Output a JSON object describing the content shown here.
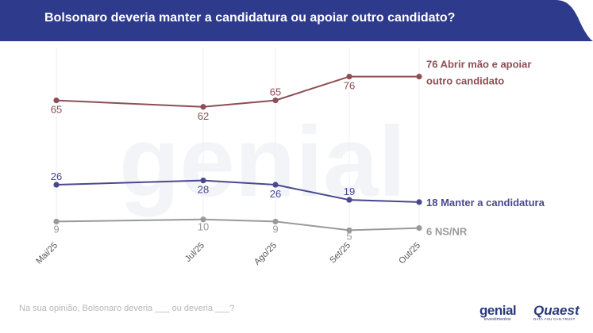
{
  "header": {
    "title": "Bolsonaro deveria manter a candidatura ou apoiar outro candidato?",
    "color": "#2e3a8c"
  },
  "footnote": "Na sua opinião, Bolsonaro deveria ___ ou deveria ___?",
  "logos": {
    "genial": {
      "name": "genial",
      "sub": "investimentos"
    },
    "quaest": {
      "name": "Quaest",
      "sub": "DATA YOU CAN TRUST"
    }
  },
  "chart_data": {
    "type": "line",
    "categories": [
      "Mai/25",
      "Jul/25",
      "Ago/25",
      "Set/25",
      "Out/25"
    ],
    "ylim": [
      0,
      85
    ],
    "grid": false,
    "series": [
      {
        "name": "Abrir mão e apoiar outro candidato",
        "label_lines": [
          "76 Abrir mão e apoiar",
          "outro candidato"
        ],
        "color": "#8e4e55",
        "values": [
          65,
          62,
          65,
          76,
          76
        ]
      },
      {
        "name": "Manter a candidatura",
        "label_lines": [
          "18 Manter a candidatura"
        ],
        "color": "#4a4890",
        "values": [
          26,
          28,
          26,
          19,
          18
        ]
      },
      {
        "name": "NS/NR",
        "label_lines": [
          "6 NS/NR"
        ],
        "color": "#9a9a9a",
        "values": [
          9,
          10,
          9,
          5,
          6
        ]
      }
    ]
  }
}
